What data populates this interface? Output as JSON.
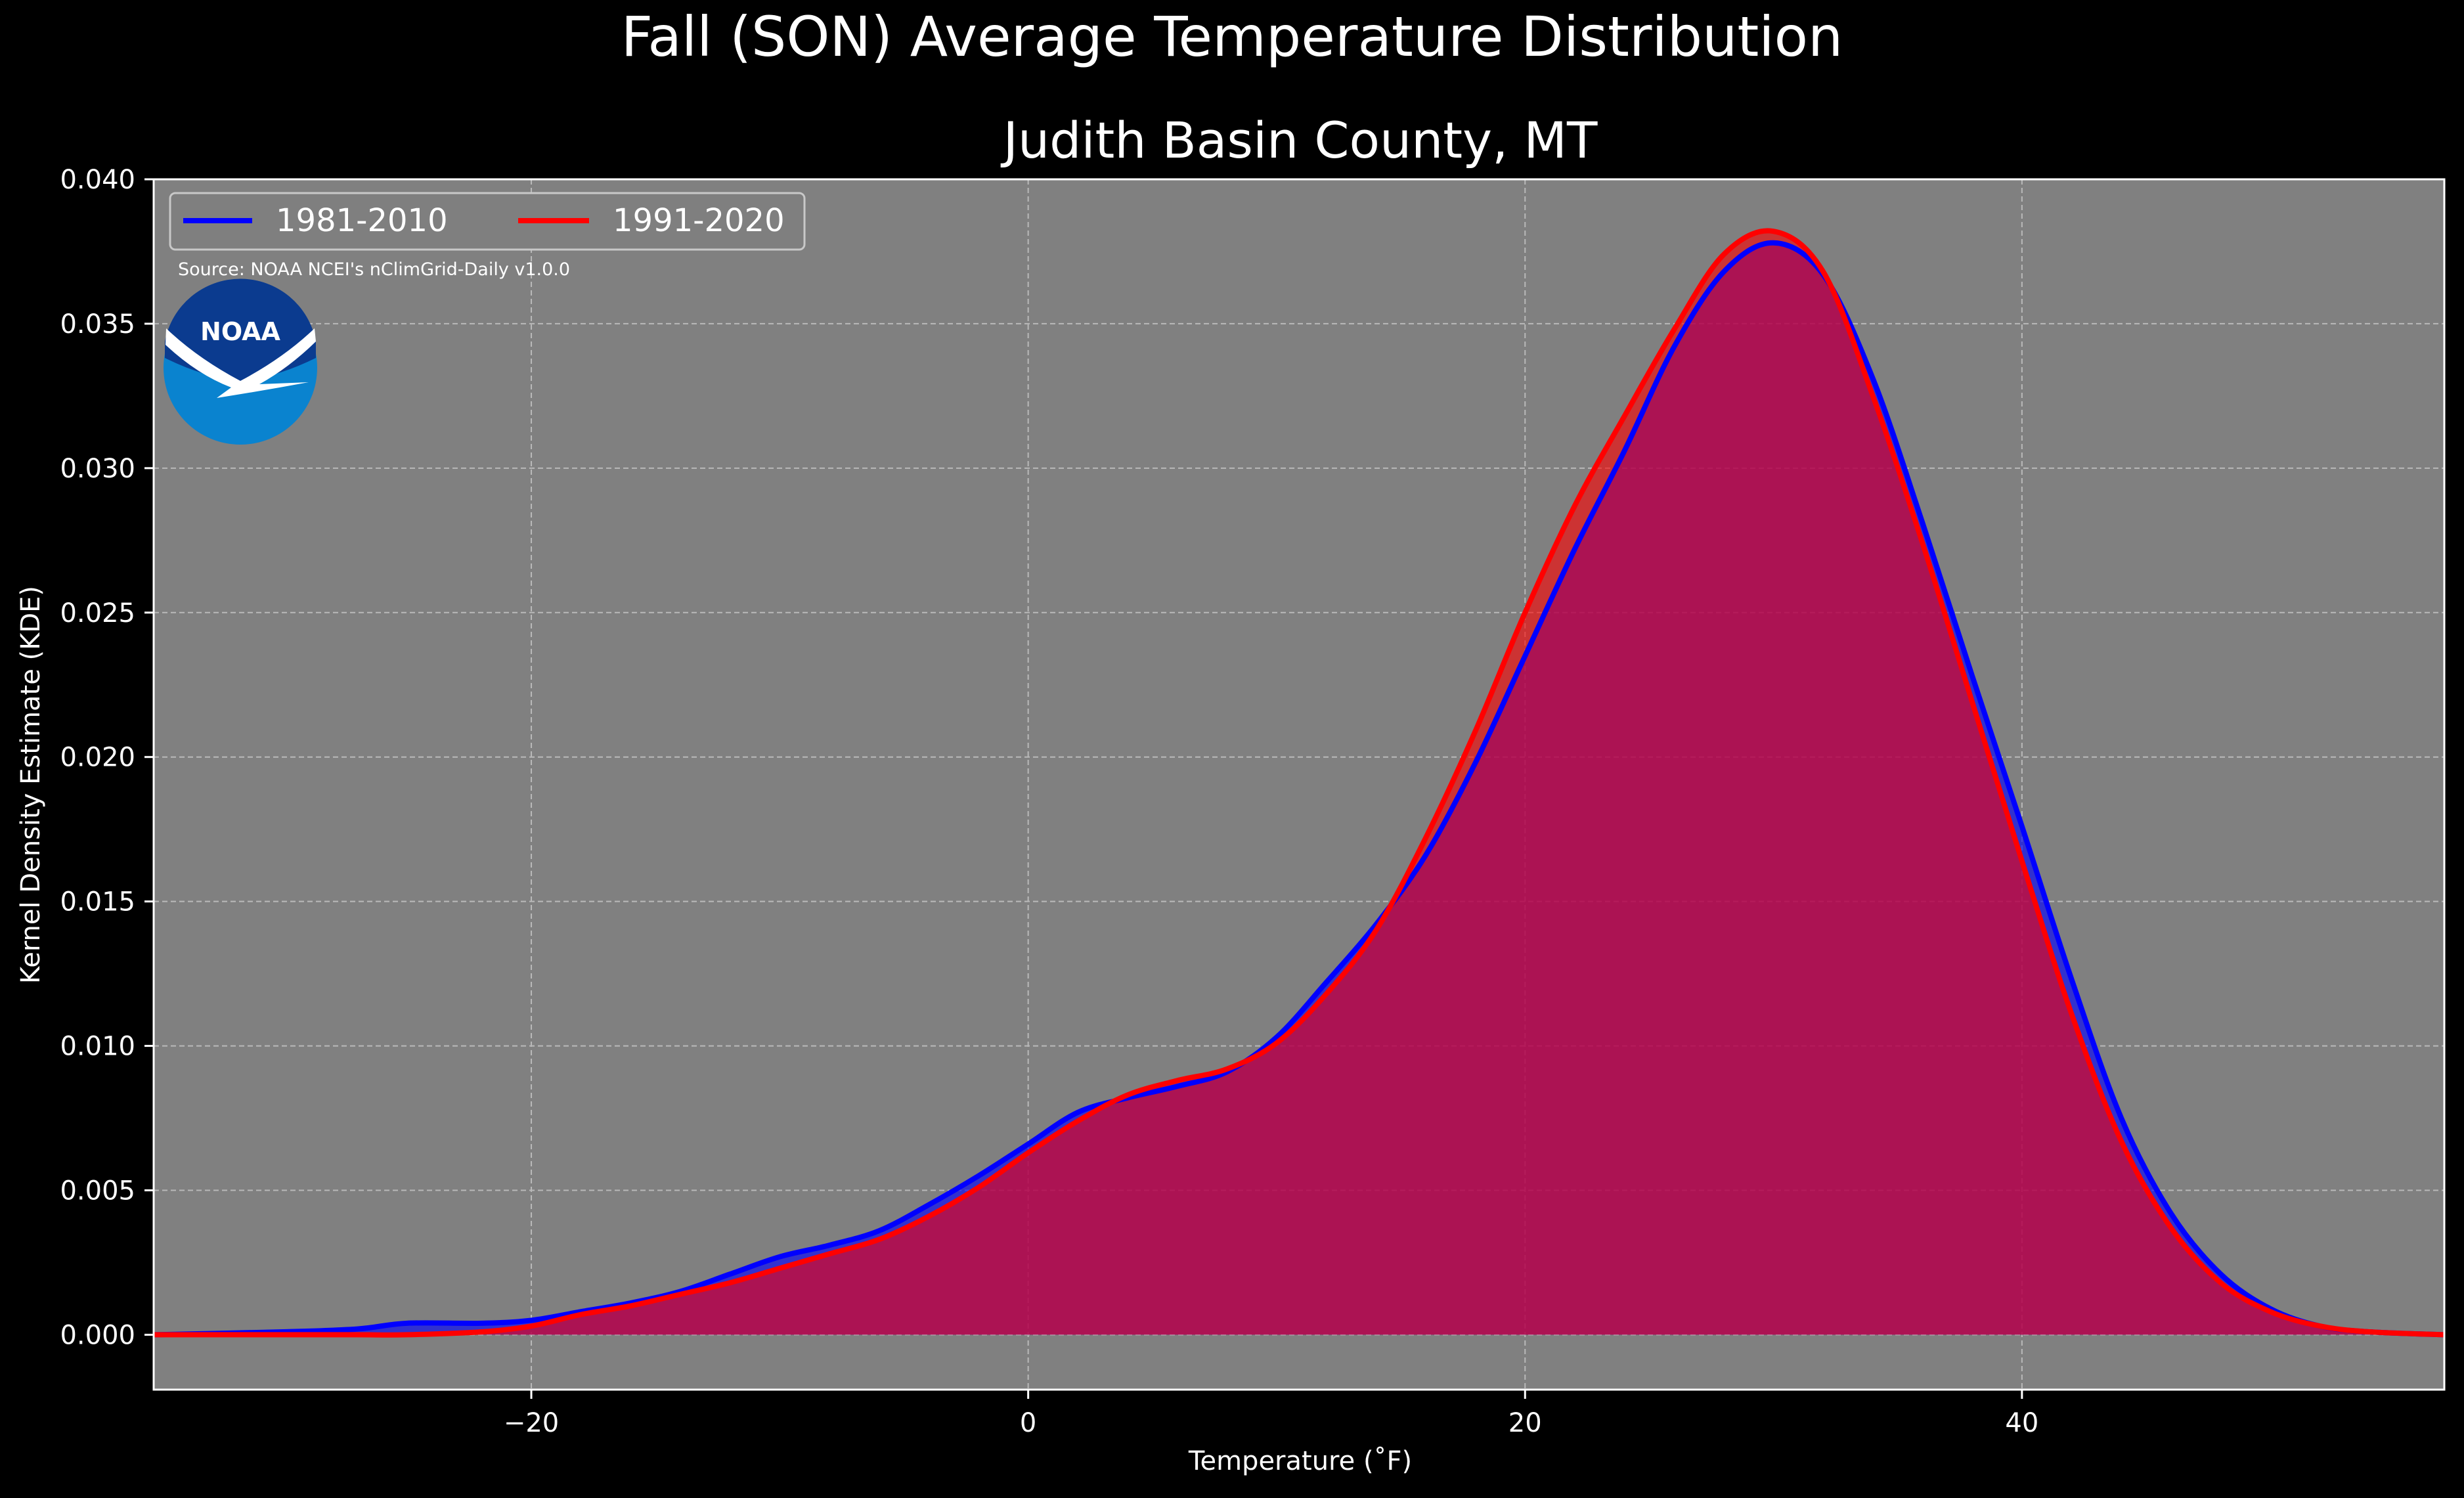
{
  "chart_data": {
    "type": "area",
    "title": "Fall (SON) Average Temperature Distribution",
    "subtitle": "Judith Basin County, MT",
    "xlabel": "Temperature ($^\\circ$F)",
    "xlabel_display": "Temperature (˚F)",
    "ylabel": "Kernel Density Estimate (KDE)",
    "xlim": [
      -35.2,
      57
    ],
    "ylim": [
      -0.0019,
      0.04
    ],
    "x_ticks": [
      -20,
      0,
      20,
      40
    ],
    "x_tick_labels": [
      "−20",
      "0",
      "20",
      "40"
    ],
    "y_ticks": [
      0.0,
      0.005,
      0.01,
      0.015,
      0.02,
      0.025,
      0.03,
      0.035,
      0.04
    ],
    "y_tick_labels": [
      "0.000",
      "0.005",
      "0.010",
      "0.015",
      "0.020",
      "0.025",
      "0.030",
      "0.035",
      "0.040"
    ],
    "grid": true,
    "legend_position": "top-left",
    "source_note": "Source: NOAA NCEI's nClimGrid-Daily v1.0.0",
    "logo_text": "NOAA",
    "colors": {
      "background": "#000000",
      "plot_background": "#808080",
      "text": "#ffffff",
      "series_1981": "#0000ff",
      "series_1991": "#ff0000",
      "overlap_fill": "#a01c5c"
    },
    "series": [
      {
        "name": "1981-2010",
        "color": "#0000ff",
        "x": [
          -35.2,
          -30,
          -27,
          -25,
          -22,
          -20,
          -18,
          -16,
          -14,
          -12,
          -10,
          -8,
          -6,
          -4,
          -2,
          0,
          2,
          4,
          6,
          8,
          10,
          12,
          14,
          16,
          18,
          20,
          22,
          24,
          26,
          28,
          30,
          32,
          34,
          36,
          38,
          40,
          42,
          44,
          46,
          48,
          50,
          52,
          54,
          57
        ],
        "y": [
          0.0,
          0.0001,
          0.0002,
          0.0004,
          0.0004,
          0.0005,
          0.0008,
          0.0011,
          0.0015,
          0.0021,
          0.0027,
          0.0031,
          0.0036,
          0.0045,
          0.0055,
          0.0066,
          0.0077,
          0.0082,
          0.0086,
          0.0091,
          0.0103,
          0.0122,
          0.0142,
          0.0166,
          0.0198,
          0.0235,
          0.0272,
          0.0306,
          0.0342,
          0.0368,
          0.0378,
          0.0367,
          0.0331,
          0.0281,
          0.0228,
          0.0176,
          0.0123,
          0.0075,
          0.0042,
          0.0021,
          0.0009,
          0.0003,
          0.0001,
          0.0
        ]
      },
      {
        "name": "1991-2020",
        "color": "#ff0000",
        "x": [
          -35.2,
          -30,
          -27,
          -25,
          -22,
          -20,
          -18,
          -16,
          -14,
          -12,
          -10,
          -8,
          -6,
          -4,
          -2,
          0,
          2,
          4,
          6,
          8,
          10,
          12,
          14,
          16,
          18,
          20,
          22,
          24,
          26,
          28,
          30,
          32,
          34,
          36,
          38,
          40,
          42,
          44,
          46,
          48,
          50,
          52,
          54,
          57
        ],
        "y": [
          0.0,
          0.0,
          0.0,
          0.0,
          0.0001,
          0.0003,
          0.0007,
          0.001,
          0.0014,
          0.0018,
          0.0023,
          0.0028,
          0.0033,
          0.0041,
          0.0051,
          0.0063,
          0.0074,
          0.0083,
          0.0088,
          0.0092,
          0.0101,
          0.0118,
          0.014,
          0.0172,
          0.0209,
          0.025,
          0.0287,
          0.0318,
          0.0348,
          0.0374,
          0.0382,
          0.0368,
          0.0325,
          0.0274,
          0.0219,
          0.0164,
          0.0111,
          0.0067,
          0.0037,
          0.0018,
          0.0008,
          0.0003,
          0.0001,
          0.0
        ]
      }
    ]
  }
}
